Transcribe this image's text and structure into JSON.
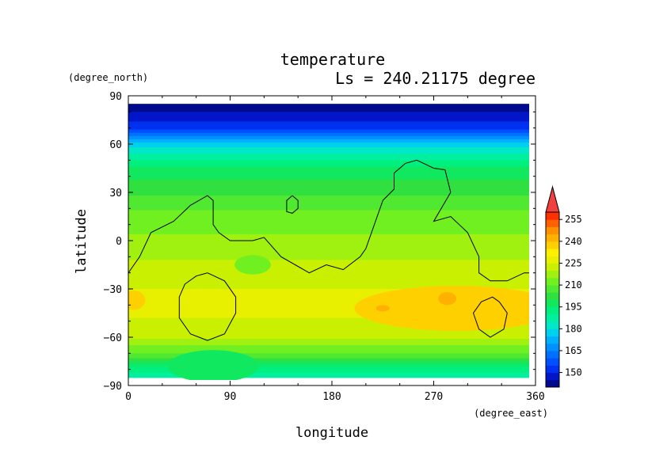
{
  "chart_data": {
    "type": "heatmap",
    "title": "temperature",
    "subtitle": "Ls = 240.21175 degree",
    "xlabel": "longitude",
    "ylabel": "latitude",
    "x_unit": "(degree_east)",
    "y_unit": "(degree_north)",
    "xlim": [
      0,
      360
    ],
    "ylim": [
      -90,
      90
    ],
    "x_ticks": [
      "0",
      "90",
      "180",
      "270",
      "360"
    ],
    "y_ticks": [
      "90",
      "60",
      "30",
      "0",
      "−30",
      "−60",
      "−90"
    ],
    "colorbar": {
      "tick_labels": [
        "150",
        "165",
        "180",
        "195",
        "210",
        "225",
        "240",
        "255"
      ],
      "levels": [
        140,
        145,
        150,
        155,
        160,
        165,
        170,
        175,
        180,
        185,
        190,
        195,
        200,
        205,
        210,
        215,
        220,
        225,
        230,
        235,
        240,
        245,
        250,
        255,
        260
      ],
      "colors": [
        "#000a8c",
        "#0016c8",
        "#0030f0",
        "#0050ff",
        "#0070ff",
        "#0090ff",
        "#00b0ff",
        "#00d0f0",
        "#00e8c8",
        "#00f0a0",
        "#00f080",
        "#10e860",
        "#30e040",
        "#50e830",
        "#70f020",
        "#a0f010",
        "#c8f000",
        "#e8f000",
        "#fff000",
        "#ffd000",
        "#ffb000",
        "#ff9000",
        "#ff6000",
        "#ff3000",
        "#f04040"
      ],
      "extend": "max"
    },
    "field_by_latitude": [
      {
        "lat": 85,
        "temp": 141
      },
      {
        "lat": 70,
        "temp": 153
      },
      {
        "lat": 60,
        "temp": 178
      },
      {
        "lat": 45,
        "temp": 196
      },
      {
        "lat": 30,
        "temp": 204
      },
      {
        "lat": 15,
        "temp": 212
      },
      {
        "lat": 0,
        "temp": 216
      },
      {
        "lat": -15,
        "temp": 221
      },
      {
        "lat": -30,
        "temp": 225
      },
      {
        "lat": -45,
        "temp": 226
      },
      {
        "lat": -60,
        "temp": 221
      },
      {
        "lat": -70,
        "temp": 210
      },
      {
        "lat": -78,
        "temp": 195
      },
      {
        "lat": -85,
        "temp": 185
      }
    ],
    "warm_anomalies": [
      {
        "lon": 290,
        "lat": -42,
        "temp": 236,
        "rx_deg": 90,
        "ry_deg": 14
      },
      {
        "lon": 225,
        "lat": -42,
        "temp": 242,
        "rx_deg": 6,
        "ry_deg": 2
      },
      {
        "lon": 282,
        "lat": -36,
        "temp": 242,
        "rx_deg": 8,
        "ry_deg": 4
      },
      {
        "lon": 5,
        "lat": -37,
        "temp": 236,
        "rx_deg": 10,
        "ry_deg": 6
      }
    ],
    "cool_anomalies": [
      {
        "lon": 75,
        "lat": -78,
        "temp": 198,
        "rx_deg": 40,
        "ry_deg": 10
      },
      {
        "lon": 110,
        "lat": -15,
        "temp": 210,
        "rx_deg": 16,
        "ry_deg": 6
      }
    ],
    "contours": [
      {
        "name": "main",
        "points": [
          [
            0,
            -20
          ],
          [
            10,
            -10
          ],
          [
            20,
            5
          ],
          [
            40,
            12
          ],
          [
            55,
            22
          ],
          [
            70,
            28
          ],
          [
            75,
            25
          ],
          [
            75,
            10
          ],
          [
            80,
            5
          ],
          [
            90,
            0
          ],
          [
            110,
            0
          ],
          [
            120,
            2
          ],
          [
            135,
            -10
          ],
          [
            160,
            -20
          ],
          [
            175,
            -15
          ],
          [
            190,
            -18
          ],
          [
            205,
            -10
          ],
          [
            210,
            -5
          ],
          [
            215,
            5
          ],
          [
            225,
            25
          ],
          [
            235,
            32
          ],
          [
            235,
            42
          ],
          [
            245,
            48
          ],
          [
            255,
            50
          ],
          [
            270,
            45
          ],
          [
            280,
            44
          ],
          [
            285,
            30
          ],
          [
            270,
            12
          ],
          [
            285,
            15
          ],
          [
            300,
            5
          ],
          [
            310,
            -10
          ],
          [
            310,
            -20
          ],
          [
            320,
            -25
          ],
          [
            335,
            -25
          ],
          [
            350,
            -20
          ],
          [
            355,
            -20
          ]
        ]
      },
      {
        "name": "small-north",
        "points": [
          [
            145,
            28
          ],
          [
            150,
            25
          ],
          [
            150,
            20
          ],
          [
            145,
            17
          ],
          [
            140,
            18
          ],
          [
            140,
            25
          ],
          [
            145,
            28
          ]
        ]
      },
      {
        "name": "south-west-loop",
        "points": [
          [
            70,
            -20
          ],
          [
            85,
            -25
          ],
          [
            95,
            -35
          ],
          [
            95,
            -45
          ],
          [
            85,
            -58
          ],
          [
            70,
            -62
          ],
          [
            55,
            -58
          ],
          [
            45,
            -48
          ],
          [
            45,
            -35
          ],
          [
            50,
            -27
          ],
          [
            60,
            -22
          ],
          [
            70,
            -20
          ]
        ]
      },
      {
        "name": "south-east-loop",
        "points": [
          [
            328,
            -38
          ],
          [
            335,
            -45
          ],
          [
            332,
            -55
          ],
          [
            320,
            -60
          ],
          [
            310,
            -55
          ],
          [
            305,
            -45
          ],
          [
            312,
            -38
          ],
          [
            322,
            -35
          ],
          [
            328,
            -38
          ]
        ]
      }
    ]
  }
}
